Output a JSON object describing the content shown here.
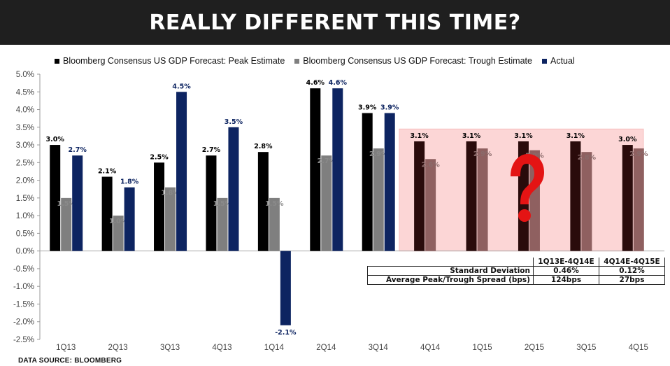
{
  "title": "REALLY DIFFERENT THIS TIME?",
  "source": "DATA SOURCE: BLOOMBERG",
  "legend": [
    {
      "label": "Bloomberg Consensus US GDP Forecast: Peak Estimate",
      "color": "#000000"
    },
    {
      "label": "Bloomberg Consensus US GDP Forecast: Trough Estimate",
      "color": "#7f7f7f"
    },
    {
      "label": "Actual",
      "color": "#0d2461"
    }
  ],
  "colors": {
    "peak": "#000000",
    "trough": "#7f7f7f",
    "actual": "#0d2461",
    "forecast_peak": "#2a0b0b",
    "forecast_trough": "#8f6060",
    "forecast_band": "#fcd6d6",
    "question_mark": "#e41414",
    "title_bg": "#1f1f1f"
  },
  "chart_data": {
    "type": "bar",
    "categories": [
      "1Q13",
      "2Q13",
      "3Q13",
      "4Q13",
      "1Q14",
      "2Q14",
      "3Q14",
      "4Q14",
      "1Q15",
      "2Q15",
      "3Q15",
      "4Q15"
    ],
    "series": [
      {
        "name": "Bloomberg Consensus US GDP Forecast: Peak Estimate",
        "values": [
          3.0,
          2.1,
          2.5,
          2.7,
          2.8,
          4.6,
          3.9,
          3.1,
          3.1,
          3.1,
          3.1,
          3.0
        ],
        "labels": [
          "3.0%",
          "2.1%",
          "2.5%",
          "2.7%",
          "2.8%",
          "4.6%",
          "3.9%",
          "3.1%",
          "3.1%",
          "3.1%",
          "3.1%",
          "3.0%"
        ]
      },
      {
        "name": "Bloomberg Consensus US GDP Forecast: Trough Estimate",
        "values": [
          1.5,
          1.0,
          1.8,
          1.5,
          1.5,
          2.7,
          2.9,
          2.6,
          2.9,
          2.85,
          2.8,
          2.9
        ],
        "labels": [
          "1.5%",
          "1.0%",
          "1.8%",
          "1.5%",
          "1.5%",
          "2.7%",
          "2.9%",
          "2.6%",
          "2.9%",
          "2.9%",
          "2.8%",
          "2.9%"
        ]
      },
      {
        "name": "Actual",
        "values": [
          2.7,
          1.8,
          4.5,
          3.5,
          -2.1,
          4.6,
          3.9,
          null,
          null,
          null,
          null,
          null
        ],
        "labels": [
          "2.7%",
          "1.8%",
          "4.5%",
          "3.5%",
          "-2.1%",
          "4.6%",
          "3.9%",
          null,
          null,
          null,
          null,
          null
        ]
      }
    ],
    "yticks": [
      "5.0%",
      "4.5%",
      "4.0%",
      "3.5%",
      "3.0%",
      "2.5%",
      "2.0%",
      "1.5%",
      "1.0%",
      "0.5%",
      "0.0%",
      "-0.5%",
      "-1.0%",
      "-1.5%",
      "-2.0%",
      "-2.5%"
    ],
    "ylim": [
      -2.5,
      5.0
    ],
    "grid": false,
    "legend_position": "top",
    "forecast_start_category": "4Q14",
    "forecast_annotation": "?"
  },
  "table": {
    "headers": [
      "1Q13E-4Q14E",
      "4Q14E-4Q15E"
    ],
    "rows": [
      {
        "label": "Standard Deviation",
        "values": [
          "0.46%",
          "0.12%"
        ]
      },
      {
        "label": "Average Peak/Trough Spread (bps)",
        "values": [
          "124bps",
          "27bps"
        ]
      }
    ]
  }
}
